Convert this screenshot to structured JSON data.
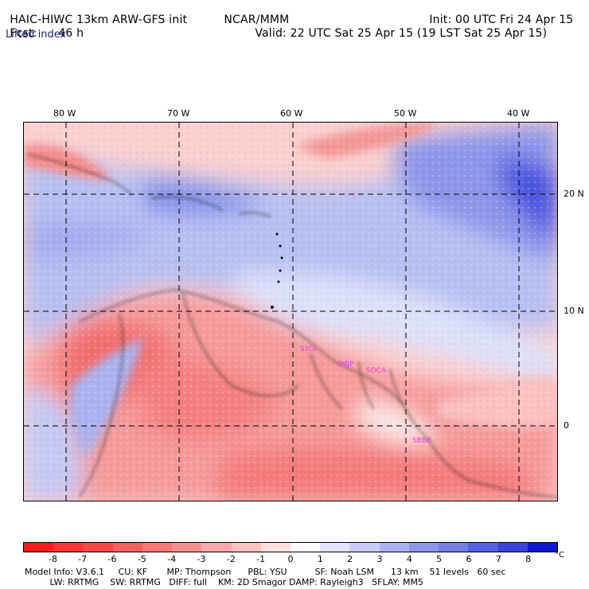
{
  "header": {
    "model": "HAIC-HIWC 13km ARW-GFS init",
    "center": "NCAR/MMM",
    "init": "Init: 00 UTC Fri 24 Apr 15",
    "fcst_label": "Fcst:",
    "fcst_value": "46 h",
    "valid": "Valid: 22 UTC Sat 25 Apr 15 (19 LST Sat 25 Apr 15)",
    "field": "Lifted index"
  },
  "lon_labels": [
    "80 W",
    "70 W",
    "60 W",
    "50 W",
    "40 W"
  ],
  "lat_labels": [
    "20 N",
    "10 N",
    "0"
  ],
  "stations": [
    "SYGI",
    "SMJP",
    "SOCA",
    "SBBE"
  ],
  "colorbar": {
    "unit": "°C",
    "labels": [
      "-8",
      "-7",
      "-6",
      "-5",
      "-4",
      "-3",
      "-2",
      "-1",
      "0",
      "1",
      "2",
      "3",
      "4",
      "5",
      "6",
      "7",
      "8"
    ],
    "colors": [
      "#ff1a1a",
      "#ff3535",
      "#f64848",
      "#f55f5f",
      "#f77777",
      "#f88e8e",
      "#faa8a8",
      "#fcc2c2",
      "#fde0e0",
      "#ffffff",
      "#e1e4fb",
      "#c8cdf6",
      "#aab2f0",
      "#8c96ea",
      "#7380e6",
      "#5560e2",
      "#3a44dd",
      "#0d17d4"
    ]
  },
  "model_info": {
    "line1": "Model Info: V3.6.1     CU: KF       MP: Thompson      PBL: YSU          SF: Noah LSM      13 km    51 levels   60 sec",
    "line2": "         LW: RRTMG    SW: RRTMG   DIFF: full    KM: 2D Smagor DAMP: Rayleigh3   SFLAY: MM5"
  }
}
